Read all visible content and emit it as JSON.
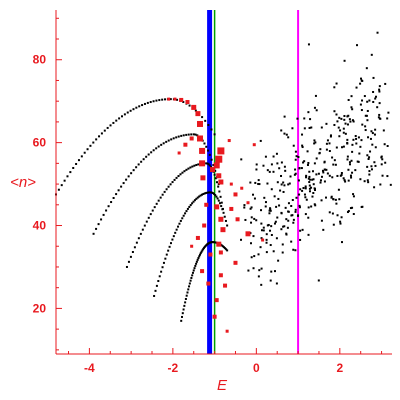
{
  "chart_data": {
    "type": "scatter",
    "xlabel": "E",
    "ylabel": "<n>",
    "xlim": [
      -4.8,
      3.25
    ],
    "ylim": [
      9,
      92
    ],
    "x_ticks": [
      -4,
      -2,
      0,
      2
    ],
    "y_ticks": [
      20,
      40,
      60,
      80
    ],
    "x_tick_labels": [
      "-4",
      "-2",
      "0",
      "2"
    ],
    "y_tick_labels": [
      "20",
      "40",
      "60",
      "80"
    ],
    "grid": false,
    "colors": {
      "axis": "#e8191f",
      "black_points": "#000000",
      "red_points": "#e8191f",
      "line_blue": "#0000ff",
      "line_green": "#00a000",
      "line_magenta": "#ff00ff"
    },
    "vertical_lines": [
      {
        "x": -1.12,
        "color": "#0000ff",
        "width": "thick"
      },
      {
        "x": -1.0,
        "color": "#00a000",
        "width": "thin"
      },
      {
        "x": 1.0,
        "color": "#ff00ff",
        "width": "medium"
      }
    ],
    "dotted_curves": [
      {
        "start": [
          -4.8,
          47.5
        ],
        "peak": [
          -2.05,
          70.5
        ],
        "end": [
          -1.0,
          62
        ]
      },
      {
        "start": [
          -3.9,
          38
        ],
        "peak": [
          -1.5,
          62
        ],
        "end": [
          -0.9,
          50
        ]
      },
      {
        "start": [
          -3.1,
          30
        ],
        "peak": [
          -1.2,
          55
        ],
        "end": [
          -0.8,
          44
        ]
      },
      {
        "start": [
          -2.45,
          23
        ],
        "peak": [
          -1.1,
          48
        ],
        "end": [
          -0.7,
          40
        ]
      },
      {
        "start": [
          -1.8,
          17
        ],
        "peak": [
          -1.05,
          36
        ],
        "end": [
          -0.7,
          34
        ]
      }
    ],
    "red_markers": [
      {
        "x": -2.1,
        "y": 70.5,
        "size": 1.5
      },
      {
        "x": -1.95,
        "y": 70.5,
        "size": 1.5
      },
      {
        "x": -1.8,
        "y": 70.3,
        "size": 2
      },
      {
        "x": -1.65,
        "y": 69.8,
        "size": 2
      },
      {
        "x": -1.5,
        "y": 68.5,
        "size": 2.5
      },
      {
        "x": -1.4,
        "y": 67,
        "size": 2.5
      },
      {
        "x": -1.35,
        "y": 61,
        "size": 3
      },
      {
        "x": -1.35,
        "y": 64.5,
        "size": 3
      },
      {
        "x": -1.3,
        "y": 55,
        "size": 3
      },
      {
        "x": -1.28,
        "y": 51.5,
        "size": 2.5
      },
      {
        "x": -1.3,
        "y": 58,
        "size": 3
      },
      {
        "x": -1.55,
        "y": 61,
        "size": 2
      },
      {
        "x": -1.7,
        "y": 59.5,
        "size": 2
      },
      {
        "x": -1.85,
        "y": 57.5,
        "size": 1.5
      },
      {
        "x": -0.85,
        "y": 58,
        "size": 3.5
      },
      {
        "x": -0.9,
        "y": 56,
        "size": 3.5
      },
      {
        "x": -0.95,
        "y": 54.5,
        "size": 3
      },
      {
        "x": -0.9,
        "y": 52,
        "size": 2.5
      },
      {
        "x": -0.85,
        "y": 50.5,
        "size": 2.5
      },
      {
        "x": -1.05,
        "y": 53.5,
        "size": 2.5
      },
      {
        "x": -0.95,
        "y": 44.5,
        "size": 2.5
      },
      {
        "x": -0.85,
        "y": 41.5,
        "size": 2.5
      },
      {
        "x": -0.8,
        "y": 39,
        "size": 2.5
      },
      {
        "x": -0.9,
        "y": 35.5,
        "size": 2.5
      },
      {
        "x": -0.85,
        "y": 33.5,
        "size": 2
      },
      {
        "x": -0.5,
        "y": 31,
        "size": 2
      },
      {
        "x": -0.75,
        "y": 25.5,
        "size": 2
      },
      {
        "x": -0.95,
        "y": 22,
        "size": 2
      },
      {
        "x": -0.7,
        "y": 14.5,
        "size": 1.5
      },
      {
        "x": -0.2,
        "y": 38,
        "size": 2.5
      },
      {
        "x": -0.45,
        "y": 41.5,
        "size": 2
      },
      {
        "x": -0.6,
        "y": 44,
        "size": 2
      },
      {
        "x": -0.5,
        "y": 47.5,
        "size": 2
      },
      {
        "x": -0.35,
        "y": 49,
        "size": 1.5
      },
      {
        "x": -0.2,
        "y": 45.5,
        "size": 1.5
      },
      {
        "x": -0.6,
        "y": 50,
        "size": 1.5
      },
      {
        "x": -1.2,
        "y": 45,
        "size": 2
      },
      {
        "x": -1.25,
        "y": 40,
        "size": 2
      },
      {
        "x": -1.4,
        "y": 37,
        "size": 2
      },
      {
        "x": -1.55,
        "y": 35,
        "size": 1.5
      },
      {
        "x": -1.3,
        "y": 29,
        "size": 2
      },
      {
        "x": -1.15,
        "y": 26,
        "size": 2
      },
      {
        "x": -1.0,
        "y": 18,
        "size": 2
      },
      {
        "x": -0.85,
        "y": 28,
        "size": 2
      },
      {
        "x": -1.1,
        "y": 33,
        "size": 2
      },
      {
        "x": 0.15,
        "y": 36.5,
        "size": 1.5
      },
      {
        "x": -0.05,
        "y": 59.5,
        "size": 1.5
      },
      {
        "x": -0.65,
        "y": 60.5,
        "size": 1.5
      }
    ],
    "black_cloud": {
      "center_start": [
        -0.2,
        40
      ],
      "center_end": [
        3.0,
        64
      ],
      "count": 420,
      "spread_y": 8.5
    }
  }
}
